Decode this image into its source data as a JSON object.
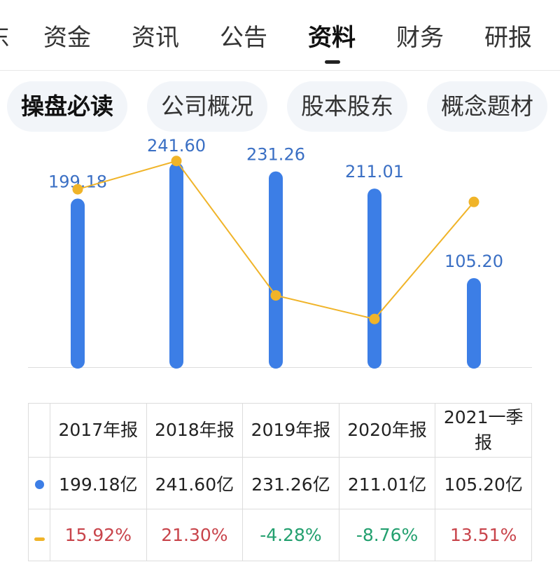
{
  "top_tabs": [
    "东",
    "资金",
    "资讯",
    "公告",
    "资料",
    "财务",
    "研报"
  ],
  "top_tabs_active": 4,
  "sub_tabs": [
    "操盘必读",
    "公司概况",
    "股本股东",
    "概念题材"
  ],
  "sub_tabs_active": 0,
  "chart_data": {
    "type": "bar",
    "categories": [
      "2017年报",
      "2018年报",
      "2019年报",
      "2020年报",
      "2021一季报"
    ],
    "series": [
      {
        "values": [
          199.18,
          241.6,
          231.26,
          211.01,
          105.2
        ],
        "color": "#3c7ee6",
        "value_labels": [
          "199.18",
          "241.60",
          "231.26",
          "211.01",
          "105.20"
        ]
      },
      {
        "type": "line",
        "values": [
          15.92,
          21.3,
          -4.28,
          -8.76,
          13.51
        ],
        "color": "#f0b429"
      }
    ],
    "bar_ylim": [
      0,
      250
    ],
    "line_ylim": [
      -15,
      25
    ],
    "grid": false
  },
  "table": {
    "headers": [
      "2017年报",
      "2018年报",
      "2019年报",
      "2020年报",
      "2021一季报"
    ],
    "values": [
      "199.18亿",
      "241.60亿",
      "231.26亿",
      "211.01亿",
      "105.20亿"
    ],
    "growth": [
      "15.92%",
      "21.30%",
      "-4.28%",
      "-8.76%",
      "13.51%"
    ],
    "bar_marker_color": "#3c7ee6",
    "line_marker_color": "#f0b429"
  },
  "colors": {
    "positive": "#c8444b",
    "negative": "#23a06f"
  }
}
